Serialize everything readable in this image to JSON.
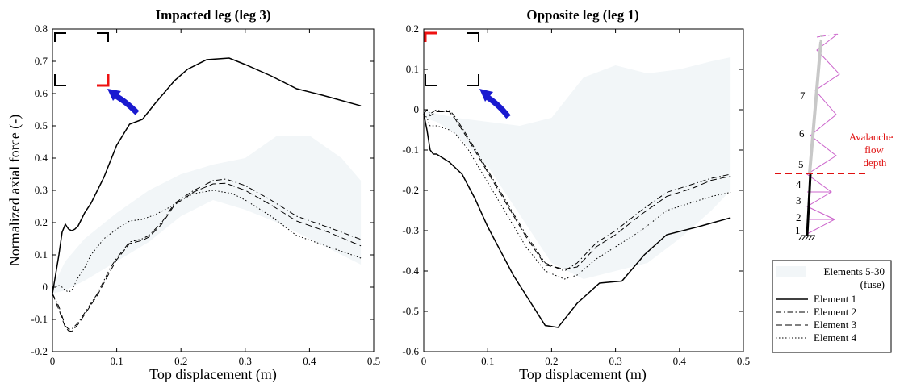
{
  "chart_data": [
    {
      "type": "line",
      "title": "Impacted leg (leg 3)",
      "xlabel": "Top displacement (m)",
      "ylabel": "Normalized axial force (-)",
      "xlim": [
        0,
        0.5
      ],
      "ylim": [
        -0.2,
        0.8
      ],
      "xticks": [
        0,
        0.1,
        0.2,
        0.3,
        0.4,
        0.5
      ],
      "xtick_labels": [
        "0",
        "0.1",
        "0.2",
        "0.3",
        "0.4",
        "0.5"
      ],
      "yticks": [
        -0.2,
        -0.1,
        0,
        0.1,
        0.2,
        0.3,
        0.4,
        0.5,
        0.6,
        0.7,
        0.8
      ],
      "ytick_labels": [
        "-0.2",
        "-0.1",
        "0",
        "0.1",
        "0.2",
        "0.3",
        "0.4",
        "0.5",
        "0.6",
        "0.7",
        "0.8"
      ],
      "band": {
        "name": "Elements 5-30 (fuse)",
        "color": "#f2f6f8",
        "x": [
          0,
          0.02,
          0.05,
          0.1,
          0.15,
          0.2,
          0.25,
          0.3,
          0.35,
          0.4,
          0.45,
          0.48
        ],
        "upper": [
          0.0,
          0.08,
          0.15,
          0.23,
          0.3,
          0.35,
          0.38,
          0.4,
          0.47,
          0.47,
          0.4,
          0.33
        ],
        "lower": [
          -0.02,
          -0.01,
          0.02,
          0.08,
          0.14,
          0.22,
          0.27,
          0.24,
          0.2,
          0.15,
          0.1,
          0.07
        ]
      },
      "series": [
        {
          "name": "Element 1",
          "dash": "solid",
          "x": [
            0,
            0.005,
            0.01,
            0.015,
            0.02,
            0.025,
            0.03,
            0.035,
            0.04,
            0.05,
            0.06,
            0.08,
            0.1,
            0.12,
            0.14,
            0.16,
            0.19,
            0.21,
            0.24,
            0.275,
            0.3,
            0.34,
            0.38,
            0.42,
            0.48
          ],
          "y": [
            -0.02,
            0.04,
            0.1,
            0.17,
            0.195,
            0.18,
            0.175,
            0.18,
            0.19,
            0.23,
            0.26,
            0.34,
            0.44,
            0.505,
            0.52,
            0.57,
            0.64,
            0.675,
            0.705,
            0.71,
            0.69,
            0.655,
            0.615,
            0.595,
            0.562
          ]
        },
        {
          "name": "Element 2",
          "dash": "dashdot",
          "x": [
            0,
            0.01,
            0.02,
            0.025,
            0.03,
            0.04,
            0.05,
            0.07,
            0.09,
            0.1,
            0.12,
            0.14,
            0.15,
            0.17,
            0.19,
            0.22,
            0.25,
            0.27,
            0.3,
            0.34,
            0.38,
            0.43,
            0.48
          ],
          "y": [
            -0.02,
            -0.06,
            -0.12,
            -0.13,
            -0.13,
            -0.11,
            -0.08,
            -0.02,
            0.06,
            0.09,
            0.14,
            0.15,
            0.16,
            0.2,
            0.26,
            0.3,
            0.33,
            0.335,
            0.315,
            0.27,
            0.22,
            0.185,
            0.148
          ]
        },
        {
          "name": "Element 3",
          "dash": "dashed",
          "x": [
            0,
            0.01,
            0.02,
            0.025,
            0.03,
            0.04,
            0.05,
            0.07,
            0.09,
            0.1,
            0.12,
            0.14,
            0.15,
            0.17,
            0.19,
            0.22,
            0.25,
            0.27,
            0.3,
            0.34,
            0.38,
            0.43,
            0.48
          ],
          "y": [
            -0.02,
            -0.07,
            -0.125,
            -0.135,
            -0.137,
            -0.115,
            -0.085,
            -0.025,
            0.05,
            0.085,
            0.135,
            0.145,
            0.155,
            0.195,
            0.255,
            0.295,
            0.32,
            0.322,
            0.3,
            0.255,
            0.205,
            0.17,
            0.128
          ]
        },
        {
          "name": "Element 4",
          "dash": "dotted",
          "x": [
            0,
            0.005,
            0.01,
            0.015,
            0.02,
            0.025,
            0.03,
            0.04,
            0.05,
            0.06,
            0.08,
            0.1,
            0.12,
            0.14,
            0.16,
            0.18,
            0.2,
            0.22,
            0.25,
            0.28,
            0.3,
            0.34,
            0.38,
            0.43,
            0.48
          ],
          "y": [
            0.0,
            0.0,
            0.005,
            0.0,
            -0.01,
            -0.015,
            -0.01,
            0.03,
            0.06,
            0.1,
            0.15,
            0.18,
            0.205,
            0.21,
            0.225,
            0.245,
            0.27,
            0.29,
            0.3,
            0.29,
            0.27,
            0.22,
            0.16,
            0.125,
            0.09
          ]
        }
      ]
    },
    {
      "type": "line",
      "title": "Opposite leg (leg 1)",
      "xlabel": "Top displacement (m)",
      "ylabel": "",
      "xlim": [
        0,
        0.5
      ],
      "ylim": [
        -0.6,
        0.2
      ],
      "xticks": [
        0,
        0.1,
        0.2,
        0.3,
        0.4,
        0.5
      ],
      "xtick_labels": [
        "0",
        "0.1",
        "0.2",
        "0.3",
        "0.4",
        "0.5"
      ],
      "yticks": [
        -0.6,
        -0.5,
        -0.4,
        -0.3,
        -0.2,
        -0.1,
        0,
        0.1,
        0.2
      ],
      "ytick_labels": [
        "-0.6",
        "-0.5",
        "-0.4",
        "-0.3",
        "-0.2",
        "-0.1",
        "0",
        "0.1",
        "0.2"
      ],
      "band": {
        "name": "Elements 5-30 (fuse)",
        "color": "#f2f6f8",
        "x": [
          0,
          0.02,
          0.05,
          0.1,
          0.15,
          0.2,
          0.25,
          0.3,
          0.35,
          0.4,
          0.45,
          0.48
        ],
        "upper": [
          0.0,
          -0.01,
          -0.02,
          -0.03,
          -0.04,
          -0.02,
          0.08,
          0.11,
          0.09,
          0.1,
          0.12,
          0.13
        ],
        "lower": [
          -0.02,
          -0.03,
          -0.06,
          -0.14,
          -0.26,
          -0.38,
          -0.42,
          -0.4,
          -0.38,
          -0.32,
          -0.25,
          -0.2
        ]
      },
      "series": [
        {
          "name": "Element 1",
          "dash": "solid",
          "x": [
            0,
            0.005,
            0.01,
            0.015,
            0.02,
            0.03,
            0.04,
            0.06,
            0.08,
            0.1,
            0.12,
            0.14,
            0.16,
            0.19,
            0.21,
            0.24,
            0.275,
            0.31,
            0.345,
            0.38,
            0.43,
            0.48
          ],
          "y": [
            -0.01,
            -0.05,
            -0.1,
            -0.11,
            -0.11,
            -0.12,
            -0.13,
            -0.16,
            -0.22,
            -0.29,
            -0.35,
            -0.41,
            -0.46,
            -0.535,
            -0.54,
            -0.48,
            -0.43,
            -0.425,
            -0.36,
            -0.31,
            -0.29,
            -0.268
          ]
        },
        {
          "name": "Element 2",
          "dash": "dashdot",
          "x": [
            0,
            0.005,
            0.01,
            0.015,
            0.02,
            0.03,
            0.04,
            0.05,
            0.07,
            0.1,
            0.13,
            0.16,
            0.19,
            0.22,
            0.24,
            0.27,
            0.3,
            0.34,
            0.38,
            0.42,
            0.45,
            0.48
          ],
          "y": [
            -0.01,
            0.0,
            -0.01,
            -0.005,
            0.0,
            -0.005,
            0.0,
            -0.02,
            -0.07,
            -0.15,
            -0.23,
            -0.31,
            -0.38,
            -0.4,
            -0.38,
            -0.33,
            -0.3,
            -0.25,
            -0.205,
            -0.185,
            -0.17,
            -0.16
          ]
        },
        {
          "name": "Element 3",
          "dash": "dashed",
          "x": [
            0,
            0.005,
            0.01,
            0.015,
            0.02,
            0.03,
            0.04,
            0.05,
            0.07,
            0.1,
            0.13,
            0.16,
            0.19,
            0.22,
            0.24,
            0.27,
            0.3,
            0.34,
            0.38,
            0.42,
            0.45,
            0.48
          ],
          "y": [
            -0.01,
            0.0,
            -0.015,
            -0.01,
            -0.005,
            -0.005,
            -0.005,
            -0.025,
            -0.075,
            -0.155,
            -0.235,
            -0.315,
            -0.385,
            -0.395,
            -0.39,
            -0.34,
            -0.31,
            -0.26,
            -0.215,
            -0.195,
            -0.175,
            -0.165
          ]
        },
        {
          "name": "Element 4",
          "dash": "dotted",
          "x": [
            0,
            0.005,
            0.01,
            0.015,
            0.02,
            0.03,
            0.04,
            0.05,
            0.07,
            0.1,
            0.13,
            0.16,
            0.19,
            0.22,
            0.24,
            0.27,
            0.3,
            0.34,
            0.38,
            0.42,
            0.45,
            0.48
          ],
          "y": [
            -0.01,
            -0.02,
            -0.04,
            -0.04,
            -0.04,
            -0.045,
            -0.05,
            -0.06,
            -0.1,
            -0.18,
            -0.26,
            -0.34,
            -0.4,
            -0.42,
            -0.41,
            -0.37,
            -0.34,
            -0.3,
            -0.25,
            -0.23,
            -0.215,
            -0.205
          ]
        }
      ]
    }
  ],
  "legend": {
    "band_label_1": "Elements 5-30",
    "band_label_2": "(fuse)",
    "items": [
      "Element 1",
      "Element 2",
      "Element 3",
      "Element 4"
    ]
  },
  "schematic": {
    "element_numbers": [
      "1",
      "2",
      "3",
      "4",
      "5",
      "6",
      "7"
    ],
    "flow_label": [
      "Avalanche",
      "flow",
      "depth"
    ],
    "colors": {
      "truss": "#cc66cc",
      "flow_line": "#e01010",
      "leg": "#000000",
      "upper_leg": "#c8c8c8"
    }
  },
  "colors": {
    "arrow": "#1a1ad0",
    "corner_active": "#ee1111",
    "corner_inactive": "#000000"
  }
}
